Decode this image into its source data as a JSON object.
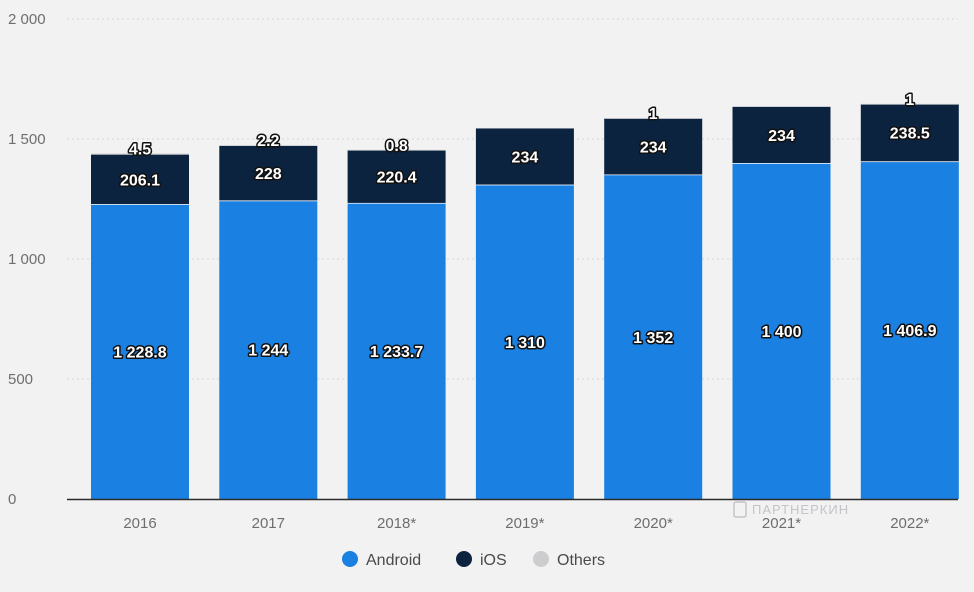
{
  "chart_data": {
    "type": "bar",
    "stacked": true,
    "categories": [
      "2016",
      "2017",
      "2018*",
      "2019*",
      "2020*",
      "2021*",
      "2022*"
    ],
    "series": [
      {
        "name": "Android",
        "color": "#1a80e2",
        "values": [
          1228.8,
          1244,
          1233.7,
          1310,
          1352,
          1400,
          1406.9
        ],
        "labels": [
          "1 228.8",
          "1 244",
          "1 233.7",
          "1 310",
          "1 352",
          "1 400",
          "1 406.9"
        ]
      },
      {
        "name": "iOS",
        "color": "#0c2340",
        "values": [
          206.1,
          228,
          220.4,
          234,
          234,
          234,
          238.5
        ],
        "labels": [
          "206.1",
          "228",
          "220.4",
          "234",
          "234",
          "234",
          "238.5"
        ]
      },
      {
        "name": "Others",
        "color": "#cdcdd0",
        "values": [
          4.5,
          2.2,
          0.8,
          0,
          1,
          0,
          1
        ],
        "labels": [
          "4.5",
          "2.2",
          "0.8",
          "",
          "1",
          "",
          "1"
        ]
      }
    ],
    "y_ticks": [
      "0",
      "500",
      "1 000",
      "1 500",
      "2 000"
    ],
    "y_tick_values": [
      0,
      500,
      1000,
      1500,
      2000
    ],
    "ylim": [
      0,
      2000
    ],
    "grid": "horizontal dashed",
    "legend_position": "bottom-center"
  },
  "watermark": "ПАРТНЕРКИН"
}
